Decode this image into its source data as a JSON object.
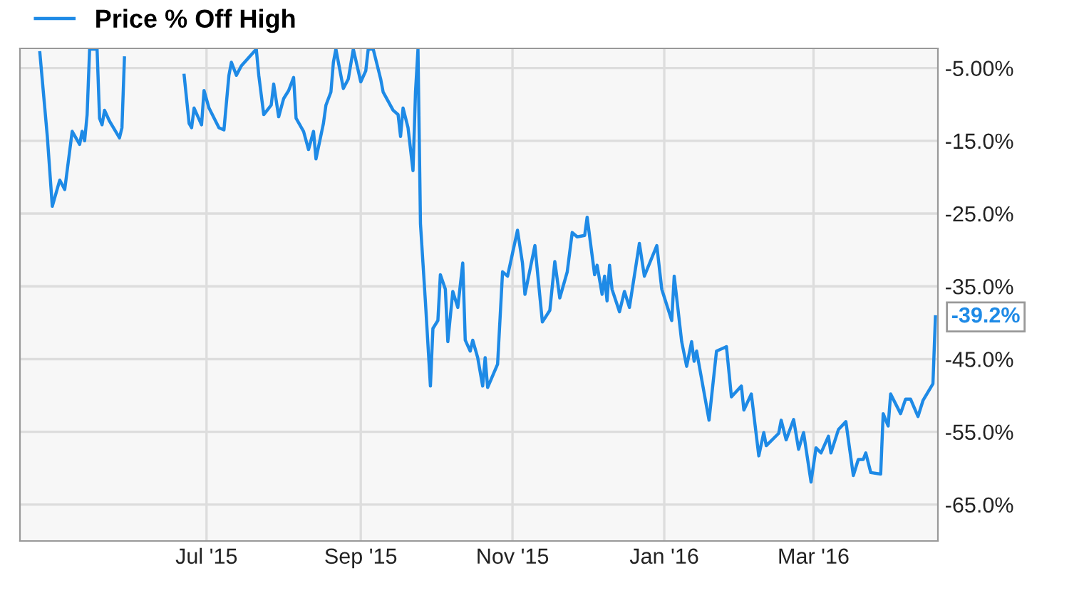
{
  "chart_data": {
    "type": "line",
    "xlim": [
      "2015-04-17",
      "2016-04-20"
    ],
    "xticks": [
      {
        "value": "2015-07-01",
        "label": "Jul '15"
      },
      {
        "value": "2015-09-01",
        "label": "Sep '15"
      },
      {
        "value": "2015-11-01",
        "label": "Nov '15"
      },
      {
        "value": "2016-01-01",
        "label": "Jan '16"
      },
      {
        "value": "2016-03-01",
        "label": "Mar '16"
      }
    ],
    "ylim": [
      -70,
      -2.3
    ],
    "yticks": [
      {
        "value": -5,
        "label": "-5.00%"
      },
      {
        "value": -15,
        "label": "-15.0%"
      },
      {
        "value": -25,
        "label": "-25.0%"
      },
      {
        "value": -35,
        "label": "-35.0%"
      },
      {
        "value": -45,
        "label": "-45.0%"
      },
      {
        "value": -55,
        "label": "-55.0%"
      },
      {
        "value": -65,
        "label": "-65.0%"
      }
    ],
    "grid": true,
    "legend": "top left",
    "annotations": [
      {
        "text": "-39.2%",
        "x": "2016-04-19",
        "y": -39.2
      }
    ],
    "series": [
      {
        "name": "Price % Off High",
        "color": "#1e8ae6",
        "x": [
          "2015-04-25",
          "2015-04-28",
          "2015-04-30",
          "2015-05-03",
          "2015-05-05",
          "2015-05-08",
          "2015-05-11",
          "2015-05-12",
          "2015-05-13",
          "2015-05-14",
          "2015-05-15",
          "2015-05-18",
          "2015-05-19",
          "2015-05-20",
          "2015-05-21",
          "2015-05-23",
          "2015-05-27",
          "2015-05-28",
          "2015-05-29",
          "2015-06-08",
          "2015-06-22",
          "2015-06-24",
          "2015-06-25",
          "2015-06-26",
          "2015-06-29",
          "2015-06-30",
          "2015-07-02",
          "2015-07-06",
          "2015-07-08",
          "2015-07-10",
          "2015-07-11",
          "2015-07-13",
          "2015-07-15",
          "2015-07-21",
          "2015-07-22",
          "2015-07-24",
          "2015-07-27",
          "2015-07-28",
          "2015-07-30",
          "2015-08-01",
          "2015-08-03",
          "2015-08-05",
          "2015-08-06",
          "2015-08-09",
          "2015-08-11",
          "2015-08-13",
          "2015-08-14",
          "2015-08-17",
          "2015-08-18",
          "2015-08-20",
          "2015-08-21",
          "2015-08-22",
          "2015-08-24",
          "2015-08-25",
          "2015-08-27",
          "2015-08-29",
          "2015-09-01",
          "2015-09-03",
          "2015-09-04",
          "2015-09-06",
          "2015-09-09",
          "2015-09-10",
          "2015-09-14",
          "2015-09-16",
          "2015-09-17",
          "2015-09-18",
          "2015-09-20",
          "2015-09-22",
          "2015-09-23",
          "2015-09-24",
          "2015-09-25",
          "2015-09-27",
          "2015-09-29",
          "2015-09-30",
          "2015-10-02",
          "2015-10-03",
          "2015-10-05",
          "2015-10-06",
          "2015-10-08",
          "2015-10-10",
          "2015-10-12",
          "2015-10-13",
          "2015-10-15",
          "2015-10-16",
          "2015-10-18",
          "2015-10-20",
          "2015-10-21",
          "2015-10-22",
          "2015-10-26",
          "2015-10-28",
          "2015-10-30",
          "2015-11-03",
          "2015-11-05",
          "2015-11-06",
          "2015-11-10",
          "2015-11-13",
          "2015-11-16",
          "2015-11-18",
          "2015-11-20",
          "2015-11-23",
          "2015-11-25",
          "2015-11-27",
          "2015-11-30",
          "2015-12-01",
          "2015-12-04",
          "2015-12-05",
          "2015-12-07",
          "2015-12-08",
          "2015-12-09",
          "2015-12-10",
          "2015-12-11",
          "2015-12-14",
          "2015-12-16",
          "2015-12-18",
          "2015-12-22",
          "2015-12-24",
          "2015-12-29",
          "2015-12-31",
          "2016-01-04",
          "2016-01-05",
          "2016-01-08",
          "2016-01-10",
          "2016-01-12",
          "2016-01-13",
          "2016-01-14",
          "2016-01-19",
          "2016-01-22",
          "2016-01-26",
          "2016-01-28",
          "2016-02-01",
          "2016-02-02",
          "2016-02-05",
          "2016-02-08",
          "2016-02-10",
          "2016-02-11",
          "2016-02-16",
          "2016-02-17",
          "2016-02-19",
          "2016-02-22",
          "2016-02-24",
          "2016-02-26",
          "2016-02-29",
          "2016-03-02",
          "2016-03-04",
          "2016-03-07",
          "2016-03-08",
          "2016-03-11",
          "2016-03-14",
          "2016-03-17",
          "2016-03-19",
          "2016-03-21",
          "2016-03-22",
          "2016-03-24",
          "2016-03-28",
          "2016-03-29",
          "2016-03-31",
          "2016-04-01",
          "2016-04-05",
          "2016-04-07",
          "2016-04-09",
          "2016-04-12",
          "2016-04-14",
          "2016-04-18",
          "2016-04-19"
        ],
        "values": [
          -2.9,
          -14.4,
          -24.0,
          -20.4,
          -21.7,
          -13.7,
          -15.5,
          -13.7,
          -15.0,
          -11.4,
          -2.4,
          -2.4,
          -11.9,
          -12.8,
          -10.8,
          -12.3,
          -14.6,
          -13.2,
          -3.6,
          null,
          -6.0,
          -12.6,
          -13.2,
          -10.5,
          -12.8,
          -8.1,
          -10.5,
          -13.2,
          -13.5,
          -6.0,
          -4.2,
          -6.0,
          -4.7,
          -2.4,
          -6.0,
          -11.4,
          -10.1,
          -7.2,
          -11.7,
          -9.2,
          -8.1,
          -6.3,
          -11.9,
          -13.7,
          -16.2,
          -13.7,
          -17.5,
          -12.6,
          -10.1,
          -8.3,
          -4.2,
          -2.4,
          -6.0,
          -7.8,
          -6.5,
          -2.4,
          -6.9,
          -5.4,
          -2.4,
          -2.4,
          -6.5,
          -8.3,
          -10.8,
          -11.4,
          -14.4,
          -10.5,
          -13.2,
          -19.1,
          -8.3,
          -2.4,
          -26.4,
          -37.2,
          -48.7,
          -40.8,
          -39.7,
          -33.4,
          -35.4,
          -42.6,
          -35.7,
          -37.9,
          -31.8,
          -42.4,
          -43.9,
          -42.4,
          -44.8,
          -48.7,
          -44.8,
          -48.9,
          -45.7,
          -33.0,
          -33.6,
          -27.3,
          -31.8,
          -36.1,
          -29.4,
          -39.9,
          -38.3,
          -31.6,
          -36.6,
          -33.0,
          -27.6,
          -28.2,
          -28.0,
          -25.5,
          -33.4,
          -32.1,
          -36.1,
          -33.6,
          -37.0,
          -32.1,
          -35.4,
          -38.5,
          -35.7,
          -37.9,
          -29.1,
          -33.6,
          -29.4,
          -35.4,
          -39.7,
          -33.6,
          -42.6,
          -46.0,
          -42.6,
          -45.3,
          -43.9,
          -53.4,
          -43.9,
          -43.3,
          -50.2,
          -48.7,
          -52.0,
          -49.8,
          -58.3,
          -55.1,
          -56.9,
          -55.2,
          -53.4,
          -56.1,
          -53.3,
          -57.4,
          -55.1,
          -61.9,
          -57.2,
          -57.9,
          -55.6,
          -57.9,
          -54.7,
          -53.6,
          -61.0,
          -58.8,
          -58.8,
          -57.9,
          -60.6,
          -60.8,
          -52.5,
          -54.2,
          -49.8,
          -52.5,
          -50.5,
          -50.5,
          -52.9,
          -50.7,
          -48.4,
          -39.2
        ]
      }
    ]
  }
}
